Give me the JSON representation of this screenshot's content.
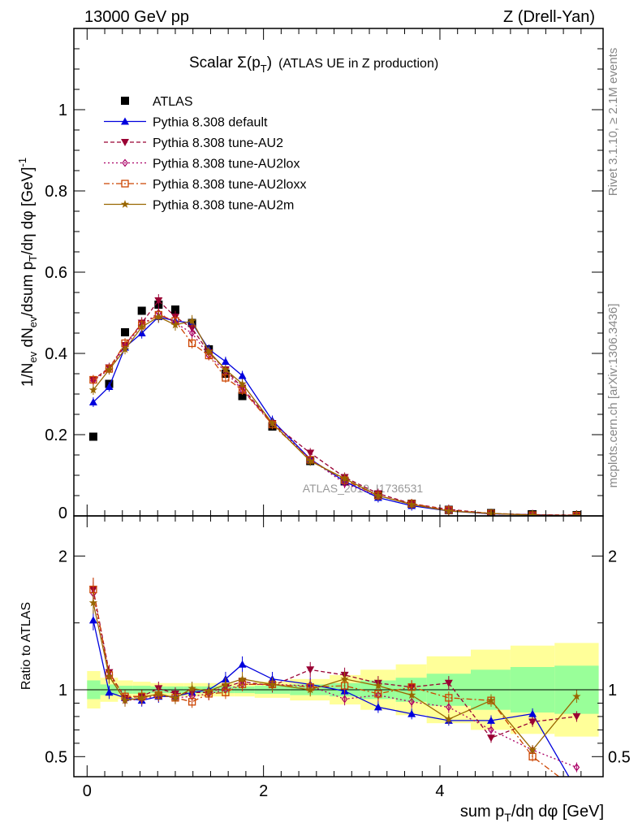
{
  "header": {
    "energy_label": "13000 GeV pp",
    "process_label": "Z (Drell-Yan)"
  },
  "side_labels": {
    "rivet": "Rivet 3.1.10, ≥ 2.1M events",
    "mcplots": "mcplots.cern.ch [arXiv:1306.3436]"
  },
  "watermark": "ATLAS_2019_I1736531",
  "chart_data": [
    {
      "type": "line",
      "panel": "main",
      "title_main": "Scalar Σ(p",
      "title_sub": "T",
      "title_close": ")",
      "title_tail": "(ATLAS UE in Z production)",
      "ylabel": "1/N_ev dN_ev/dsum p_T/dη dφ [GeV]^-1",
      "xlim": [
        -0.15,
        5.85
      ],
      "ylim": [
        0,
        1.2
      ],
      "y_ticks": [
        0.2,
        0.4,
        0.6,
        0.8,
        1
      ],
      "y_tick_labels": [
        "0.2",
        "0.4",
        "0.6",
        "0.8",
        "1"
      ],
      "x": [
        0.07,
        0.25,
        0.43,
        0.62,
        0.81,
        1.0,
        1.19,
        1.38,
        1.57,
        1.76,
        2.1,
        2.53,
        2.92,
        3.3,
        3.68,
        4.1,
        4.58,
        5.05,
        5.55
      ],
      "series": [
        {
          "name": "ATLAS",
          "color": "#000000",
          "marker": "square",
          "dash": "",
          "values": [
            0.195,
            0.325,
            0.452,
            0.505,
            0.52,
            0.508,
            0.475,
            0.41,
            0.35,
            0.295,
            0.22,
            0.135,
            0.085,
            0.052,
            0.03,
            0.015,
            0.007,
            0.004,
            0.002
          ]
        },
        {
          "name": "Pythia 8.308 default",
          "color": "#0000dd",
          "marker": "triangle-up",
          "dash": "",
          "values": [
            0.28,
            0.318,
            0.415,
            0.45,
            0.49,
            0.48,
            0.475,
            0.41,
            0.38,
            0.345,
            0.235,
            0.14,
            0.085,
            0.045,
            0.025,
            0.012,
            0.005,
            0.003,
            0.001
          ]
        },
        {
          "name": "Pythia 8.308 tune-AU2",
          "color": "#990033",
          "marker": "triangle-down",
          "dash": "5,3",
          "values": [
            0.335,
            0.365,
            0.42,
            0.475,
            0.53,
            0.49,
            0.462,
            0.402,
            0.36,
            0.315,
            0.228,
            0.155,
            0.095,
            0.055,
            0.03,
            0.016,
            0.006,
            0.003,
            0.002
          ]
        },
        {
          "name": "Pythia 8.308 tune-AU2lox",
          "color": "#aa0066",
          "marker": "diamond",
          "dash": "2,3",
          "values": [
            0.333,
            0.36,
            0.418,
            0.47,
            0.5,
            0.475,
            0.45,
            0.395,
            0.355,
            0.31,
            0.228,
            0.14,
            0.08,
            0.05,
            0.028,
            0.013,
            0.005,
            0.003,
            0.001
          ]
        },
        {
          "name": "Pythia 8.308 tune-AU2loxx",
          "color": "#cc4400",
          "marker": "square-open",
          "dash": "7,3,2,3",
          "values": [
            0.335,
            0.362,
            0.425,
            0.47,
            0.495,
            0.48,
            0.425,
            0.395,
            0.34,
            0.31,
            0.225,
            0.138,
            0.088,
            0.05,
            0.03,
            0.014,
            0.006,
            0.002,
            0.001
          ]
        },
        {
          "name": "Pythia 8.308 tune-AU2m",
          "color": "#996600",
          "marker": "star",
          "dash": "",
          "values": [
            0.31,
            0.36,
            0.41,
            0.465,
            0.49,
            0.47,
            0.48,
            0.405,
            0.36,
            0.325,
            0.228,
            0.135,
            0.092,
            0.05,
            0.028,
            0.012,
            0.006,
            0.002,
            0.001
          ]
        }
      ]
    },
    {
      "type": "line",
      "panel": "ratio",
      "ylabel": "Ratio to ATLAS",
      "xlabel": "sum p_T/dη dφ [GeV]",
      "xlim": [
        -0.15,
        5.85
      ],
      "ylim": [
        0.35,
        2.3
      ],
      "y_ticks": [
        0.5,
        1,
        2
      ],
      "y_tick_labels": [
        "0.5",
        "1",
        "2"
      ],
      "x_ticks": [
        0,
        2,
        4
      ],
      "x_tick_labels": [
        "0",
        "2",
        "4"
      ],
      "x": [
        0.07,
        0.25,
        0.43,
        0.62,
        0.81,
        1.0,
        1.19,
        1.38,
        1.57,
        1.76,
        2.1,
        2.53,
        2.92,
        3.3,
        3.68,
        4.1,
        4.58,
        5.05,
        5.55
      ],
      "band_edges": [
        0,
        0.15,
        0.35,
        0.52,
        0.72,
        0.9,
        1.1,
        1.3,
        1.48,
        1.67,
        1.9,
        2.3,
        2.75,
        3.1,
        3.5,
        3.85,
        4.35,
        4.8,
        5.3,
        5.8
      ],
      "band_yellow": [
        0.14,
        0.09,
        0.07,
        0.06,
        0.05,
        0.05,
        0.05,
        0.05,
        0.05,
        0.05,
        0.06,
        0.08,
        0.11,
        0.15,
        0.19,
        0.25,
        0.3,
        0.33,
        0.35
      ],
      "band_green": [
        0.07,
        0.04,
        0.03,
        0.03,
        0.025,
        0.025,
        0.025,
        0.025,
        0.025,
        0.025,
        0.03,
        0.04,
        0.05,
        0.07,
        0.09,
        0.12,
        0.15,
        0.17,
        0.18
      ],
      "series": [
        {
          "name": "Pythia 8.308 default",
          "color": "#0000dd",
          "marker": "triangle-up",
          "dash": "",
          "values": [
            1.52,
            0.98,
            0.94,
            0.92,
            0.95,
            0.95,
            0.98,
            1.0,
            1.08,
            1.19,
            1.08,
            1.04,
            0.99,
            0.87,
            0.82,
            0.77,
            0.77,
            0.82,
            0.25
          ]
        },
        {
          "name": "Pythia 8.308 tune-AU2",
          "color": "#990033",
          "marker": "triangle-down",
          "dash": "5,3",
          "values": [
            1.75,
            1.13,
            0.94,
            0.95,
            1.01,
            0.97,
            0.98,
            0.98,
            1.02,
            1.06,
            1.03,
            1.15,
            1.11,
            1.05,
            1.02,
            1.05,
            0.64,
            0.76,
            0.8
          ]
        },
        {
          "name": "Pythia 8.308 tune-AU2lox",
          "color": "#aa0066",
          "marker": "diamond",
          "dash": "2,3",
          "values": [
            1.72,
            1.1,
            0.92,
            0.93,
            0.96,
            0.94,
            0.95,
            0.97,
            1.0,
            1.04,
            1.04,
            1.03,
            0.93,
            0.96,
            0.91,
            0.87,
            0.7,
            0.55,
            0.42
          ]
        },
        {
          "name": "Pythia 8.308 tune-AU2loxx",
          "color": "#cc4400",
          "marker": "square-open",
          "dash": "7,3,2,3",
          "values": [
            1.75,
            1.11,
            0.95,
            0.95,
            0.96,
            0.94,
            0.91,
            0.97,
            0.98,
            1.04,
            1.04,
            1.02,
            1.03,
            0.97,
            1.02,
            0.94,
            0.92,
            0.5,
            0.25
          ]
        },
        {
          "name": "Pythia 8.308 tune-AU2m",
          "color": "#996600",
          "marker": "star",
          "dash": "",
          "values": [
            1.65,
            1.1,
            0.92,
            0.94,
            0.97,
            0.94,
            1.01,
            0.99,
            1.04,
            1.08,
            1.04,
            1.0,
            1.08,
            1.03,
            0.96,
            0.78,
            0.92,
            0.55,
            0.95
          ]
        }
      ]
    }
  ]
}
